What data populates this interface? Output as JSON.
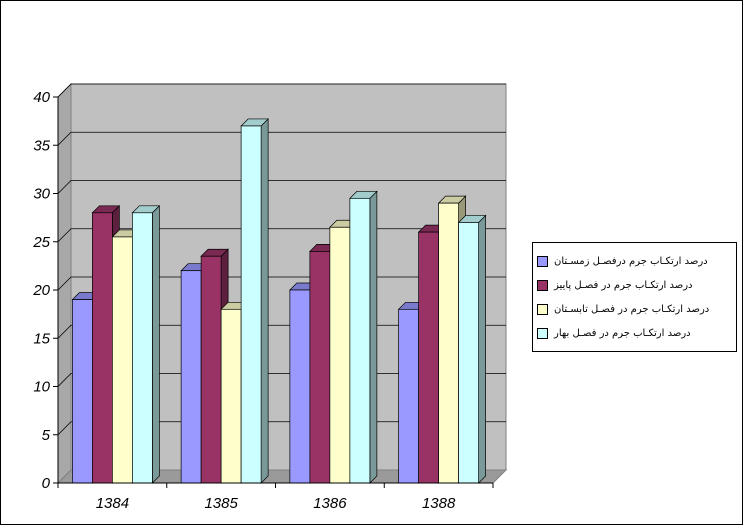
{
  "chart_data": {
    "type": "bar",
    "categories": [
      "1384",
      "1385",
      "1386",
      "1388"
    ],
    "series": [
      {
        "name": "درصد ارتکـاب جرم درفصـل زمسـتان",
        "color": "#9999ff",
        "values": [
          19,
          22,
          20,
          18
        ]
      },
      {
        "name": "درصد ارتکـاب   جرم در فصـل پاییز",
        "color": "#993366",
        "values": [
          28,
          23.5,
          24,
          26
        ]
      },
      {
        "name": "درصد ارتکـاب جرم در فصـل تابسـتان",
        "color": "#ffffcc",
        "values": [
          25.5,
          18,
          26.5,
          29
        ]
      },
      {
        "name": "درصد ارتکـاب جرم در فصـل بهار",
        "color": "#ccffff",
        "values": [
          28,
          37,
          29.5,
          27
        ]
      }
    ],
    "yticks": [
      "0",
      "5",
      "10",
      "15",
      "20",
      "25",
      "30",
      "35",
      "40"
    ],
    "ylim": [
      0,
      40
    ],
    "grid": true,
    "legend_position": "right",
    "title": "",
    "xlabel": "",
    "ylabel": ""
  }
}
